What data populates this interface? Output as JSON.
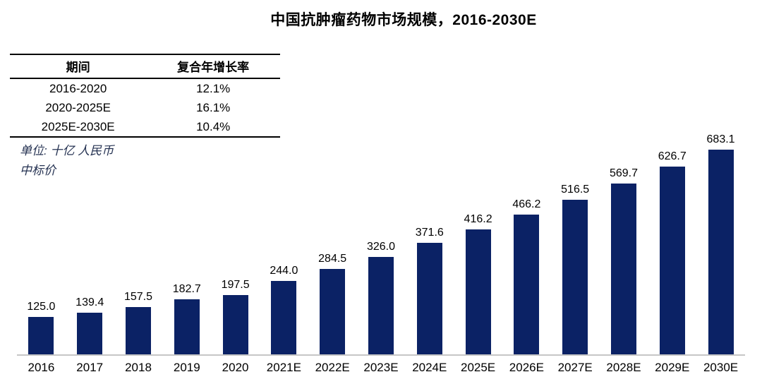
{
  "title": "中国抗肿瘤药物市场规模，2016-2030E",
  "table": {
    "headers": [
      "期间",
      "复合年增长率"
    ],
    "rows": [
      [
        "2016-2020",
        "12.1%"
      ],
      [
        "2020-2025E",
        "16.1%"
      ],
      [
        "2025E-2030E",
        "10.4%"
      ]
    ]
  },
  "notes": [
    "单位: 十亿 人民币",
    "中标价"
  ],
  "chart_data": {
    "type": "bar",
    "categories": [
      "2016",
      "2017",
      "2018",
      "2019",
      "2020",
      "2021E",
      "2022E",
      "2023E",
      "2024E",
      "2025E",
      "2026E",
      "2027E",
      "2028E",
      "2029E",
      "2030E"
    ],
    "values": [
      125.0,
      139.4,
      157.5,
      182.7,
      197.5,
      244.0,
      284.5,
      326.0,
      371.6,
      416.2,
      466.2,
      516.5,
      569.7,
      626.7,
      683.1
    ],
    "value_labels": [
      "125.0",
      "139.4",
      "157.5",
      "182.7",
      "197.5",
      "244.0",
      "284.5",
      "326.0",
      "371.6",
      "416.2",
      "466.2",
      "516.5",
      "569.7",
      "626.7",
      "683.1"
    ],
    "title": "中国抗肿瘤药物市场规模，2016-2030E",
    "xlabel": "",
    "ylabel": "十亿 人民币 (中标价)",
    "ylim": [
      0,
      700
    ],
    "grid": false,
    "legend": "none",
    "bar_color": "#0b2265",
    "axis_line_color": "#c6c6c6",
    "label_color": "#000000"
  }
}
